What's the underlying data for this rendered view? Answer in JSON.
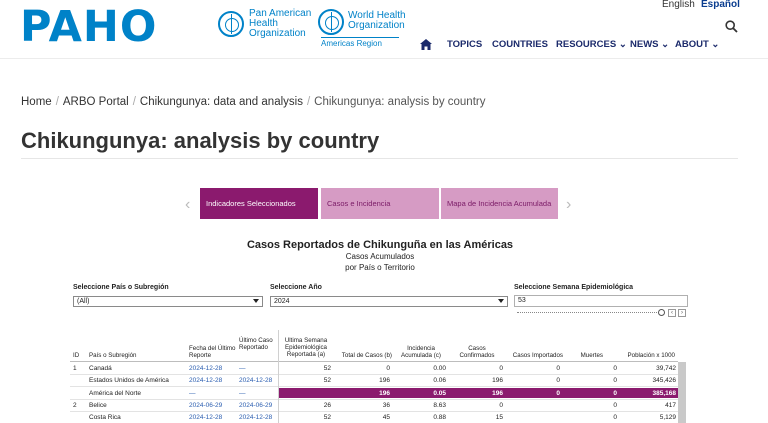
{
  "header": {
    "logo_text": "PAHO",
    "paho_lines": [
      "Pan American",
      "Health",
      "Organization"
    ],
    "who_lines": [
      "World Health",
      "Organization"
    ],
    "who_region": "Americas Region",
    "lang_en": "English",
    "lang_es": "Español"
  },
  "nav": {
    "items": [
      "TOPICS",
      "COUNTRIES",
      "RESOURCES",
      "NEWS",
      "ABOUT"
    ]
  },
  "breadcrumb": {
    "items": [
      "Home",
      "ARBO Portal",
      "Chikungunya: data and analysis"
    ],
    "current": "Chikungunya: analysis by country"
  },
  "page_title": "Chikungunya: analysis by country",
  "tabs": [
    "Indicadores Seleccionados",
    "Casos e Incidencia",
    "Mapa de Incidencia Acumulada"
  ],
  "viz": {
    "title": "Casos Reportados de Chikunguña en las Américas",
    "subtitle1": "Casos Acumulados",
    "subtitle2": "por País o Territorio"
  },
  "filters": {
    "country_label": "Seleccione País o Subregión",
    "country_value": "(All)",
    "year_label": "Seleccione Año",
    "year_value": "2024",
    "week_label": "Seleccione Semana Epidemiológica",
    "week_value": "53"
  },
  "table": {
    "headers": {
      "id": "ID",
      "country": "País o Subregión",
      "report_date": "Fecha del Último Reporte",
      "last_report": "Último Caso Reportado",
      "last_week": "Ultima Semana Epidemiológica Reportada (a)",
      "total": "Total de Casos (b)",
      "incidence": "Incidencia Acumulada (c)",
      "confirmed": "Casos Confirmados",
      "imported": "Casos Importados",
      "deaths": "Muertes",
      "population": "Población x 1000"
    },
    "rows": [
      {
        "id": "1",
        "country": "Canadá",
        "report_date": "2024-12-28",
        "last_report": "—",
        "last_week": "52",
        "total": "0",
        "incidence": "0.00",
        "confirmed": "0",
        "imported": "0",
        "deaths": "0",
        "population": "39,742"
      },
      {
        "id": "",
        "country": "Estados Unidos de América",
        "report_date": "2024-12-28",
        "last_report": "2024-12-28",
        "last_week": "52",
        "total": "196",
        "incidence": "0.06",
        "confirmed": "196",
        "imported": "0",
        "deaths": "0",
        "population": "345,426"
      },
      {
        "id": "",
        "country": "América del Norte",
        "report_date": "—",
        "last_report": "—",
        "last_week": "",
        "total": "196",
        "incidence": "0.05",
        "confirmed": "196",
        "imported": "0",
        "deaths": "0",
        "population": "385,168"
      },
      {
        "id": "2",
        "country": "Belice",
        "report_date": "2024-06-29",
        "last_report": "2024-06-29",
        "last_week": "26",
        "total": "36",
        "incidence": "8.63",
        "confirmed": "0",
        "imported": "",
        "deaths": "0",
        "population": "417"
      },
      {
        "id": "",
        "country": "Costa Rica",
        "report_date": "2024-12-28",
        "last_report": "2024-12-28",
        "last_week": "52",
        "total": "45",
        "incidence": "0.88",
        "confirmed": "15",
        "imported": "",
        "deaths": "0",
        "population": "5,129"
      }
    ]
  },
  "colors": {
    "brand_blue": "#0082c8",
    "tab_active": "#8b1a6e",
    "tab_inactive": "#d69bc4"
  }
}
